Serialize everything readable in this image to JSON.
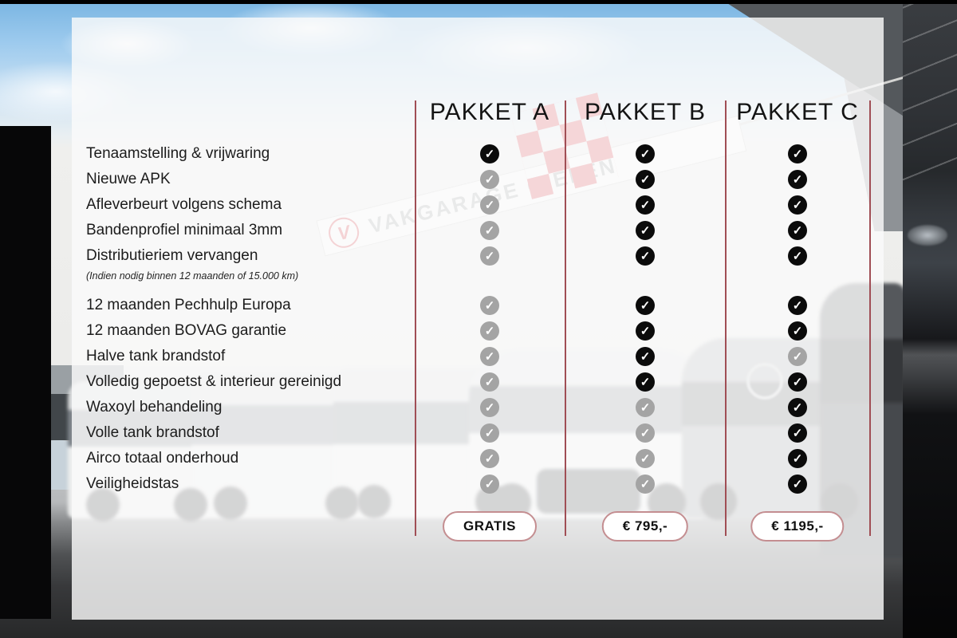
{
  "packages": [
    {
      "name": "PAKKET A",
      "price": "GRATIS"
    },
    {
      "name": "PAKKET B",
      "price": "€ 795,-"
    },
    {
      "name": "PAKKET C",
      "price": "€ 1195,-"
    }
  ],
  "feature_groups": [
    {
      "rows": [
        {
          "label": "Tenaamstelling & vrijwaring",
          "checks": [
            true,
            true,
            true
          ]
        },
        {
          "label": "Nieuwe APK",
          "checks": [
            false,
            true,
            true
          ]
        },
        {
          "label": "Afleverbeurt volgens schema",
          "checks": [
            false,
            true,
            true
          ]
        },
        {
          "label": "Bandenprofiel minimaal 3mm",
          "checks": [
            false,
            true,
            true
          ]
        },
        {
          "label": "Distributieriem vervangen",
          "note": "(Indien nodig binnen 12 maanden of 15.000 km)",
          "checks": [
            false,
            true,
            true
          ]
        }
      ]
    },
    {
      "rows": [
        {
          "label": "12 maanden Pechhulp Europa",
          "checks": [
            false,
            true,
            true
          ]
        },
        {
          "label": "12 maanden BOVAG garantie",
          "checks": [
            false,
            true,
            true
          ]
        },
        {
          "label": "Halve tank brandstof",
          "checks": [
            false,
            true,
            false
          ]
        },
        {
          "label": "Volledig gepoetst & interieur gereinigd",
          "checks": [
            false,
            true,
            true
          ]
        },
        {
          "label": "Waxoyl behandeling",
          "checks": [
            false,
            false,
            true
          ]
        },
        {
          "label": "Volle tank brandstof",
          "checks": [
            false,
            false,
            true
          ]
        },
        {
          "label": "Airco totaal onderhoud",
          "checks": [
            false,
            false,
            true
          ]
        },
        {
          "label": "Veiligheidstas",
          "checks": [
            false,
            false,
            true
          ]
        }
      ]
    }
  ],
  "background": {
    "building_sign": "VAKGARAGE GIELEN",
    "logo_letter": "V"
  },
  "colors": {
    "divider_red": "#a04e55",
    "check_included": "#0b0b0b",
    "check_excluded": "#a4a4a4",
    "button_border": "#c48e91",
    "flag_red": "#dc3540"
  },
  "icons": {
    "check": "✓"
  }
}
